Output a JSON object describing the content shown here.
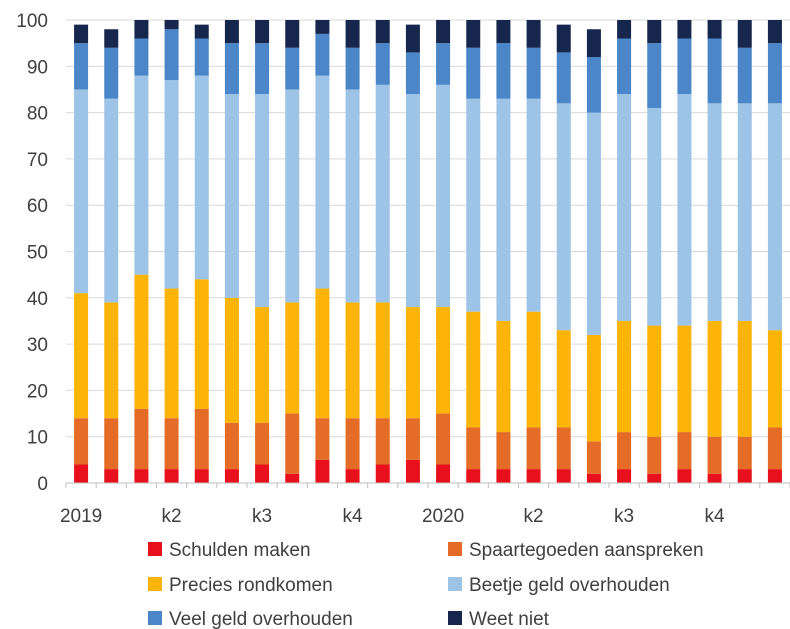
{
  "chart_data": {
    "type": "bar",
    "stacked": true,
    "title": "",
    "xlabel": "",
    "ylabel": "",
    "ylim": [
      0,
      100
    ],
    "yticks": [
      0,
      10,
      20,
      30,
      40,
      50,
      60,
      70,
      80,
      90,
      100
    ],
    "grid": true,
    "legend_position": "bottom",
    "x_tick_labels": [
      {
        "index": 0,
        "label": "2019"
      },
      {
        "index": 3,
        "label": "k2"
      },
      {
        "index": 6,
        "label": "k3"
      },
      {
        "index": 9,
        "label": "k4"
      },
      {
        "index": 12,
        "label": "2020"
      },
      {
        "index": 15,
        "label": "k2"
      },
      {
        "index": 18,
        "label": "k3"
      },
      {
        "index": 21,
        "label": "k4"
      }
    ],
    "categories": [
      "1",
      "2",
      "3",
      "4",
      "5",
      "6",
      "7",
      "8",
      "9",
      "10",
      "11",
      "12",
      "13",
      "14",
      "15",
      "16",
      "17",
      "18",
      "19",
      "20",
      "21",
      "22",
      "23",
      "24"
    ],
    "series": [
      {
        "name": "Schulden maken",
        "color": "#e8101c",
        "values": [
          4,
          3,
          3,
          3,
          3,
          3,
          4,
          2,
          5,
          3,
          4,
          5,
          4,
          3,
          3,
          3,
          3,
          2,
          3,
          2,
          3,
          2,
          3,
          3
        ]
      },
      {
        "name": "Spaartegoeden aanspreken",
        "color": "#e46c26",
        "values": [
          10,
          11,
          13,
          11,
          13,
          10,
          9,
          13,
          9,
          11,
          10,
          9,
          11,
          9,
          8,
          9,
          9,
          7,
          8,
          8,
          8,
          8,
          7,
          9
        ]
      },
      {
        "name": "Precies rondkomen",
        "color": "#fdb409",
        "values": [
          27,
          25,
          29,
          28,
          28,
          27,
          25,
          24,
          28,
          25,
          25,
          24,
          23,
          25,
          24,
          25,
          21,
          23,
          24,
          24,
          23,
          25,
          25,
          21
        ]
      },
      {
        "name": "Beetje geld overhouden",
        "color": "#9dc3e6",
        "values": [
          44,
          44,
          43,
          45,
          44,
          44,
          46,
          46,
          46,
          46,
          47,
          46,
          48,
          46,
          48,
          46,
          49,
          48,
          49,
          47,
          50,
          47,
          47,
          49
        ]
      },
      {
        "name": "Veel geld overhouden",
        "color": "#4a86c8",
        "values": [
          10,
          11,
          8,
          11,
          8,
          11,
          11,
          9,
          9,
          9,
          9,
          9,
          9,
          11,
          12,
          11,
          11,
          12,
          12,
          14,
          12,
          14,
          12,
          13
        ]
      },
      {
        "name": "Weet niet",
        "color": "#16264d",
        "values": [
          4,
          4,
          4,
          2,
          3,
          5,
          5,
          6,
          3,
          6,
          5,
          6,
          5,
          6,
          5,
          6,
          6,
          6,
          4,
          5,
          4,
          4,
          6,
          5
        ]
      }
    ]
  }
}
